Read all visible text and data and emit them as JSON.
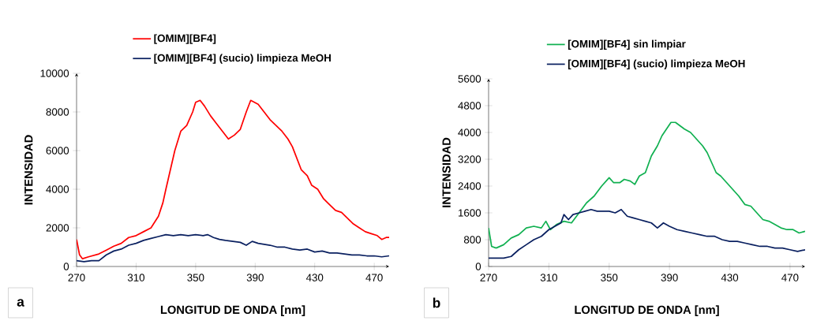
{
  "chart_data": [
    {
      "type": "line",
      "xlabel": "LONGITUD DE ONDA [nm]",
      "ylabel": "INTENSIDAD",
      "xlim": [
        270,
        480
      ],
      "xticks": [
        270,
        310,
        350,
        390,
        430,
        470
      ],
      "ylim": [
        0,
        10000
      ],
      "yticks": [
        0,
        2000,
        4000,
        6000,
        8000,
        10000
      ],
      "legend": "top",
      "marker": "none",
      "line_style": "solid",
      "annotations": [
        "a"
      ],
      "series": [
        {
          "name": "[OMIM][BF4]",
          "color": "#ff0000",
          "x": [
            270,
            272,
            274,
            278,
            285,
            290,
            295,
            300,
            305,
            310,
            315,
            320,
            325,
            328,
            330,
            333,
            336,
            340,
            344,
            348,
            350,
            353,
            356,
            360,
            364,
            368,
            372,
            376,
            380,
            384,
            387,
            392,
            396,
            400,
            404,
            408,
            412,
            415,
            418,
            421,
            425,
            428,
            432,
            436,
            440,
            444,
            448,
            452,
            456,
            460,
            464,
            468,
            472,
            475,
            478,
            480
          ],
          "values": [
            1400,
            600,
            400,
            500,
            650,
            850,
            1050,
            1200,
            1500,
            1600,
            1800,
            2000,
            2600,
            3300,
            4000,
            5000,
            6000,
            7000,
            7300,
            8000,
            8500,
            8600,
            8300,
            7800,
            7400,
            7000,
            6600,
            6800,
            7100,
            8000,
            8600,
            8400,
            8000,
            7600,
            7300,
            7000,
            6600,
            6200,
            5600,
            5000,
            4700,
            4200,
            4000,
            3500,
            3200,
            2900,
            2800,
            2500,
            2200,
            2000,
            1800,
            1700,
            1600,
            1400,
            1500,
            1500
          ]
        },
        {
          "name": "[OMIM][BF4] (sucio) limpieza MeOH",
          "color": "#0a2060",
          "x": [
            270,
            275,
            280,
            285,
            290,
            295,
            300,
            305,
            310,
            315,
            320,
            325,
            330,
            335,
            340,
            345,
            350,
            355,
            358,
            362,
            366,
            370,
            375,
            380,
            384,
            388,
            392,
            396,
            400,
            405,
            410,
            415,
            420,
            425,
            430,
            435,
            440,
            445,
            450,
            455,
            460,
            465,
            470,
            475,
            480
          ],
          "values": [
            300,
            250,
            300,
            300,
            600,
            800,
            900,
            1100,
            1200,
            1350,
            1450,
            1550,
            1650,
            1600,
            1650,
            1600,
            1650,
            1600,
            1650,
            1500,
            1400,
            1350,
            1300,
            1250,
            1100,
            1300,
            1200,
            1150,
            1100,
            1000,
            1000,
            900,
            850,
            900,
            750,
            800,
            700,
            700,
            650,
            600,
            600,
            550,
            550,
            500,
            550
          ]
        }
      ]
    },
    {
      "type": "line",
      "xlabel": "LONGITUD DE ONDA [nm]",
      "ylabel": "INTENSIDAD",
      "xlim": [
        270,
        480
      ],
      "xticks": [
        270,
        310,
        350,
        390,
        430,
        470
      ],
      "ylim": [
        0,
        5600
      ],
      "yticks": [
        0,
        800,
        1600,
        2400,
        3200,
        4000,
        4800,
        5600
      ],
      "legend": "top",
      "marker": "none",
      "line_style": "solid",
      "annotations": [
        "b"
      ],
      "series": [
        {
          "name": "[OMIM][BF4] sin limpiar",
          "color": "#10b050",
          "x": [
            270,
            272,
            275,
            280,
            285,
            290,
            295,
            300,
            305,
            308,
            311,
            315,
            320,
            325,
            330,
            335,
            340,
            345,
            350,
            353,
            357,
            360,
            364,
            367,
            370,
            374,
            378,
            382,
            385,
            388,
            391,
            394,
            397,
            400,
            404,
            408,
            412,
            415,
            418,
            421,
            424,
            428,
            432,
            436,
            440,
            444,
            448,
            452,
            456,
            460,
            464,
            468,
            472,
            476,
            480
          ],
          "values": [
            1150,
            600,
            550,
            650,
            850,
            950,
            1150,
            1200,
            1150,
            1350,
            1100,
            1250,
            1350,
            1300,
            1600,
            1900,
            2100,
            2400,
            2650,
            2500,
            2500,
            2600,
            2550,
            2450,
            2700,
            2800,
            3300,
            3600,
            3900,
            4100,
            4300,
            4300,
            4200,
            4100,
            4000,
            3800,
            3600,
            3400,
            3100,
            2800,
            2700,
            2500,
            2300,
            2100,
            1850,
            1800,
            1600,
            1400,
            1350,
            1250,
            1150,
            1100,
            1100,
            1000,
            1050
          ]
        },
        {
          "name": "[OMIM][BF4] (sucio) limpieza MeOH",
          "color": "#0a2060",
          "x": [
            270,
            275,
            280,
            285,
            290,
            295,
            300,
            305,
            310,
            314,
            318,
            320,
            323,
            326,
            330,
            334,
            338,
            342,
            346,
            350,
            354,
            358,
            362,
            366,
            370,
            374,
            378,
            382,
            386,
            390,
            395,
            400,
            405,
            410,
            415,
            420,
            425,
            430,
            435,
            440,
            445,
            450,
            455,
            460,
            465,
            470,
            475,
            480
          ],
          "values": [
            250,
            250,
            250,
            300,
            500,
            650,
            800,
            900,
            1100,
            1200,
            1300,
            1550,
            1400,
            1550,
            1600,
            1650,
            1700,
            1650,
            1650,
            1650,
            1600,
            1700,
            1500,
            1450,
            1400,
            1350,
            1300,
            1150,
            1300,
            1200,
            1100,
            1050,
            1000,
            950,
            900,
            900,
            800,
            750,
            750,
            700,
            650,
            600,
            600,
            550,
            550,
            500,
            450,
            500
          ]
        }
      ]
    }
  ]
}
